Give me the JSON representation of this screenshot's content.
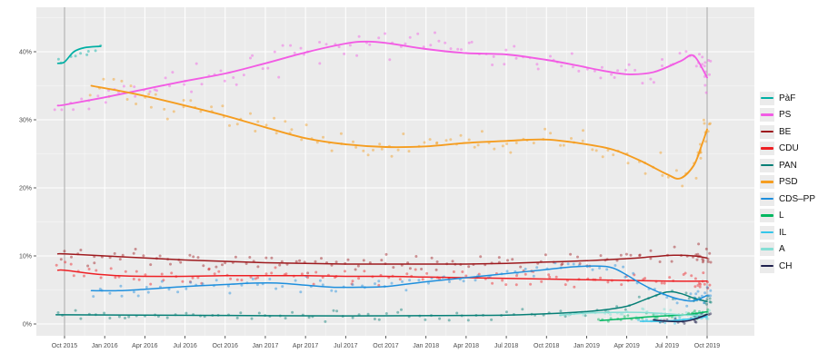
{
  "chart_data": {
    "type": "line",
    "scatter_overlay": true,
    "title": "",
    "xlabel": "",
    "ylabel": "",
    "x_unit_months_from": "Oct 2015",
    "x_range_months": [
      -2.1,
      51.5
    ],
    "ylim": [
      -1.7,
      46.6
    ],
    "grid": true,
    "legend_position": "right",
    "panel_bg": "#EBEBEB",
    "grid_color": "#FFFFFF",
    "axis_text_color": "#4D4D4D",
    "reference_line_color": "#A6A6A6",
    "reference_lines_months": [
      0,
      48
    ],
    "x_ticks": [
      {
        "month": 0,
        "label": "Oct 2015"
      },
      {
        "month": 3,
        "label": "Jan 2016"
      },
      {
        "month": 6,
        "label": "Apr 2016"
      },
      {
        "month": 9,
        "label": "Jul 2016"
      },
      {
        "month": 12,
        "label": "Oct 2016"
      },
      {
        "month": 15,
        "label": "Jan 2017"
      },
      {
        "month": 18,
        "label": "Apr 2017"
      },
      {
        "month": 21,
        "label": "Jul 2017"
      },
      {
        "month": 24,
        "label": "Oct 2017"
      },
      {
        "month": 27,
        "label": "Jan 2018"
      },
      {
        "month": 30,
        "label": "Apr 2018"
      },
      {
        "month": 33,
        "label": "Jul 2018"
      },
      {
        "month": 36,
        "label": "Oct 2018"
      },
      {
        "month": 39,
        "label": "Jan 2019"
      },
      {
        "month": 42,
        "label": "Apr 2019"
      },
      {
        "month": 45,
        "label": "Jul 2019"
      },
      {
        "month": 48,
        "label": "Oct 2019"
      }
    ],
    "y_ticks": [
      {
        "value": 0,
        "label": "0%"
      },
      {
        "value": 10,
        "label": "10%"
      },
      {
        "value": 20,
        "label": "20%"
      },
      {
        "value": 30,
        "label": "30%"
      },
      {
        "value": 40,
        "label": "40%"
      }
    ],
    "series": [
      {
        "name": "PàF",
        "color": "#00AFA4",
        "line_width": 1.7,
        "points": [
          [
            -0.5,
            38.3
          ],
          [
            0,
            38.5
          ],
          [
            0.7,
            40.0
          ],
          [
            1.5,
            40.6
          ],
          [
            2.7,
            40.8
          ]
        ],
        "scatter_interval": 0.4,
        "scatter_jitter": 0.8,
        "end_cluster": 0,
        "end_jitter": 0
      },
      {
        "name": "PS",
        "color": "#F25CE4",
        "line_width": 1.9,
        "points": [
          [
            -0.5,
            32.1
          ],
          [
            0,
            32.2
          ],
          [
            3,
            33.3
          ],
          [
            6,
            34.5
          ],
          [
            9,
            35.7
          ],
          [
            12,
            36.8
          ],
          [
            15,
            38.3
          ],
          [
            18,
            39.9
          ],
          [
            21,
            41.2
          ],
          [
            22.5,
            41.5
          ],
          [
            24,
            41.3
          ],
          [
            27,
            40.4
          ],
          [
            30,
            39.8
          ],
          [
            33,
            39.6
          ],
          [
            36,
            38.8
          ],
          [
            38,
            38.1
          ],
          [
            40,
            37.3
          ],
          [
            42,
            36.7
          ],
          [
            44,
            37.0
          ],
          [
            46,
            38.6
          ],
          [
            47,
            39.4
          ],
          [
            48,
            36.2
          ]
        ],
        "scatter_interval": 0.42,
        "scatter_jitter": 1.3,
        "end_cluster": 14,
        "end_jitter": 1.4
      },
      {
        "name": "BE",
        "color": "#9E1A1E",
        "line_width": 1.5,
        "points": [
          [
            -0.5,
            10.3
          ],
          [
            0,
            10.3
          ],
          [
            3,
            10.0
          ],
          [
            6,
            9.7
          ],
          [
            9,
            9.4
          ],
          [
            12,
            9.2
          ],
          [
            15,
            9.0
          ],
          [
            18,
            8.9
          ],
          [
            21,
            8.8
          ],
          [
            24,
            8.8
          ],
          [
            27,
            8.8
          ],
          [
            30,
            8.8
          ],
          [
            33,
            8.9
          ],
          [
            36,
            9.1
          ],
          [
            39,
            9.3
          ],
          [
            42,
            9.6
          ],
          [
            44,
            9.9
          ],
          [
            45.5,
            10.1
          ],
          [
            47,
            10.0
          ],
          [
            48,
            9.7
          ]
        ],
        "scatter_interval": 0.42,
        "scatter_jitter": 0.75,
        "end_cluster": 12,
        "end_jitter": 1.0
      },
      {
        "name": "CDU",
        "color": "#EE2024",
        "line_width": 1.5,
        "points": [
          [
            -0.5,
            7.9
          ],
          [
            0,
            7.9
          ],
          [
            2,
            7.4
          ],
          [
            4,
            7.1
          ],
          [
            6,
            7.0
          ],
          [
            9,
            7.0
          ],
          [
            12,
            7.1
          ],
          [
            15,
            7.1
          ],
          [
            18,
            7.1
          ],
          [
            21,
            7.0
          ],
          [
            24,
            7.0
          ],
          [
            27,
            6.9
          ],
          [
            30,
            6.8
          ],
          [
            33,
            6.7
          ],
          [
            36,
            6.6
          ],
          [
            39,
            6.5
          ],
          [
            42,
            6.4
          ],
          [
            45,
            6.3
          ],
          [
            48,
            6.3
          ]
        ],
        "scatter_interval": 0.42,
        "scatter_jitter": 0.7,
        "end_cluster": 10,
        "end_jitter": 0.9
      },
      {
        "name": "PAN",
        "color": "#067F76",
        "line_width": 1.5,
        "points": [
          [
            -0.5,
            1.35
          ],
          [
            0,
            1.35
          ],
          [
            6,
            1.3
          ],
          [
            12,
            1.25
          ],
          [
            18,
            1.2
          ],
          [
            24,
            1.2
          ],
          [
            30,
            1.25
          ],
          [
            33,
            1.3
          ],
          [
            36,
            1.5
          ],
          [
            38,
            1.7
          ],
          [
            40,
            2.0
          ],
          [
            42,
            2.6
          ],
          [
            43.5,
            3.7
          ],
          [
            45,
            4.7
          ],
          [
            46,
            4.5
          ],
          [
            47,
            3.8
          ],
          [
            48,
            3.3
          ]
        ],
        "scatter_interval": 0.55,
        "scatter_jitter": 0.45,
        "end_cluster": 10,
        "end_jitter": 0.7
      },
      {
        "name": "PSD",
        "color": "#F59D20",
        "line_width": 1.9,
        "points": [
          [
            2,
            35.0
          ],
          [
            4,
            34.3
          ],
          [
            6,
            33.5
          ],
          [
            9,
            32.1
          ],
          [
            12,
            30.6
          ],
          [
            15,
            28.9
          ],
          [
            18,
            27.3
          ],
          [
            21,
            26.4
          ],
          [
            24,
            26.0
          ],
          [
            27,
            26.1
          ],
          [
            30,
            26.6
          ],
          [
            33,
            26.9
          ],
          [
            36,
            27.1
          ],
          [
            39,
            26.4
          ],
          [
            41,
            25.6
          ],
          [
            43,
            24.0
          ],
          [
            45,
            22.0
          ],
          [
            46,
            21.4
          ],
          [
            47,
            23.3
          ],
          [
            47.6,
            26.3
          ],
          [
            48,
            28.6
          ]
        ],
        "scatter_interval": 0.42,
        "scatter_jitter": 1.3,
        "end_cluster": 14,
        "end_jitter": 1.6
      },
      {
        "name": "CDS–PP",
        "color": "#1E8FDD",
        "line_width": 1.5,
        "points": [
          [
            2,
            4.9
          ],
          [
            4,
            4.9
          ],
          [
            6,
            5.1
          ],
          [
            9,
            5.5
          ],
          [
            12,
            5.8
          ],
          [
            14,
            6.0
          ],
          [
            16,
            6.0
          ],
          [
            18,
            5.7
          ],
          [
            20,
            5.4
          ],
          [
            22,
            5.4
          ],
          [
            24,
            5.5
          ],
          [
            27,
            6.2
          ],
          [
            30,
            6.8
          ],
          [
            33,
            7.4
          ],
          [
            36,
            8.0
          ],
          [
            38,
            8.4
          ],
          [
            40,
            8.5
          ],
          [
            41,
            8.2
          ],
          [
            42,
            7.2
          ],
          [
            43,
            6.0
          ],
          [
            44,
            5.0
          ],
          [
            45,
            4.2
          ],
          [
            46,
            3.6
          ],
          [
            47,
            3.4
          ],
          [
            48,
            4.2
          ]
        ],
        "scatter_interval": 0.5,
        "scatter_jitter": 0.65,
        "end_cluster": 10,
        "end_jitter": 0.8
      },
      {
        "name": "L",
        "color": "#00B760",
        "line_width": 1.5,
        "points": [
          [
            40,
            0.5
          ],
          [
            42,
            0.8
          ],
          [
            44,
            1.1
          ],
          [
            46,
            1.3
          ],
          [
            47,
            1.5
          ],
          [
            48,
            1.8
          ]
        ],
        "scatter_interval": 0.3,
        "scatter_jitter": 0.3,
        "end_cluster": 8,
        "end_jitter": 0.5
      },
      {
        "name": "IL",
        "color": "#35C6EA",
        "line_width": 1.5,
        "points": [
          [
            43,
            0.4
          ],
          [
            44.5,
            0.4
          ],
          [
            46,
            0.6
          ],
          [
            47,
            0.8
          ],
          [
            48,
            1.1
          ]
        ],
        "scatter_interval": 0.3,
        "scatter_jitter": 0.3,
        "end_cluster": 8,
        "end_jitter": 0.5
      },
      {
        "name": "A",
        "color": "#86DFD5",
        "line_width": 1.5,
        "points": [
          [
            37,
            1.3
          ],
          [
            39,
            1.6
          ],
          [
            41,
            1.7
          ],
          [
            43,
            1.7
          ],
          [
            45,
            1.5
          ],
          [
            46.5,
            1.3
          ],
          [
            48,
            1.3
          ]
        ],
        "scatter_interval": 0.35,
        "scatter_jitter": 0.4,
        "end_cluster": 8,
        "end_jitter": 0.8
      },
      {
        "name": "CH",
        "color": "#20224E",
        "line_width": 1.5,
        "points": [
          [
            44,
            0.6
          ],
          [
            45,
            0.4
          ],
          [
            45.8,
            0.35
          ],
          [
            46.5,
            0.45
          ],
          [
            47.2,
            0.8
          ],
          [
            48,
            1.4
          ]
        ],
        "scatter_interval": 0.3,
        "scatter_jitter": 0.25,
        "end_cluster": 6,
        "end_jitter": 0.4
      }
    ]
  }
}
